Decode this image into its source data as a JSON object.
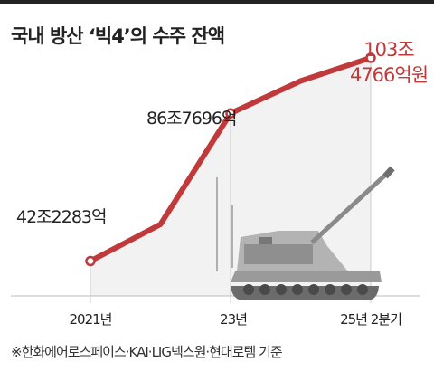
{
  "title": "국내 방산 ‘빅4’의 수주 잔액",
  "footnote": "※한화에어로스페이스·KAI·LIG넥스원·현대로템 기준",
  "colors": {
    "line": "#c0393b",
    "text": "#222222",
    "shade": "#f2f2f2",
    "grid": "#cccccc"
  },
  "illustration": "self-propelled-howitzer",
  "chart_data": {
    "type": "line",
    "unit": "조원",
    "xlabels": [
      "2021년",
      "23년",
      "25년 2분기"
    ],
    "points": [
      {
        "x": 0,
        "value": 42.2283,
        "label": "42조2283억"
      },
      {
        "x": 1,
        "value": 53.3
      },
      {
        "x": 2,
        "value": 86.7696,
        "label": "86조7696억"
      },
      {
        "x": 3,
        "value": 96.5
      },
      {
        "x": 4,
        "value": 103.4766,
        "label_line1": "103조",
        "label_line2": "4766억원"
      }
    ],
    "ylim": [
      20,
      110
    ]
  }
}
